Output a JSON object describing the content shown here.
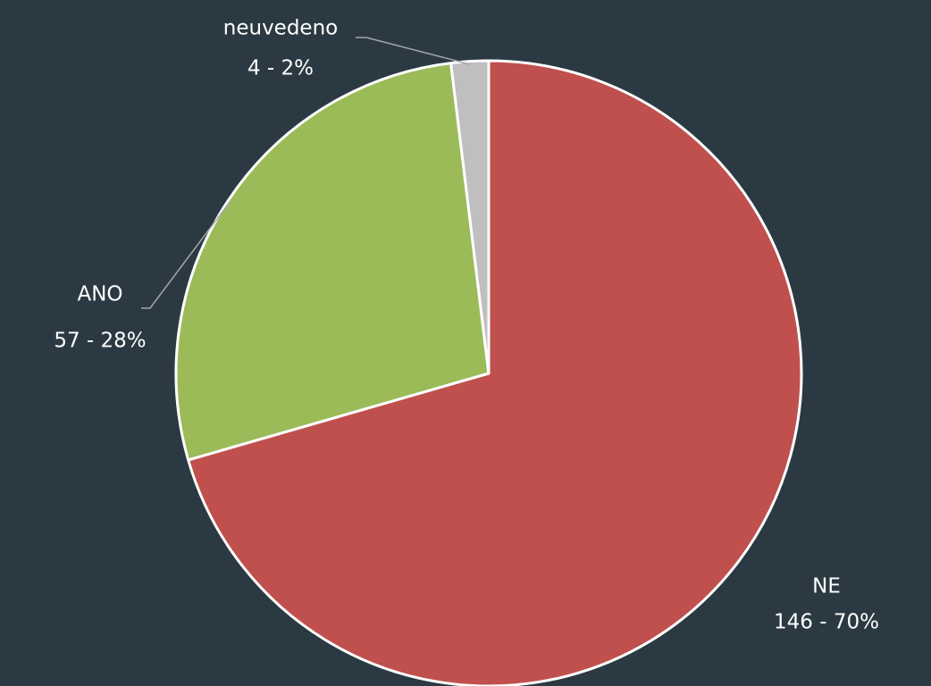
{
  "chart_data": {
    "type": "pie",
    "categories": [
      "NE",
      "ANO",
      "neuvedeno"
    ],
    "values": [
      146,
      57,
      4
    ],
    "value_labels": [
      "146 - 70%",
      "57 - 28%",
      "4 - 2%"
    ],
    "colors": [
      "#c0504d",
      "#9bbb59",
      "#bfbfbf"
    ]
  }
}
